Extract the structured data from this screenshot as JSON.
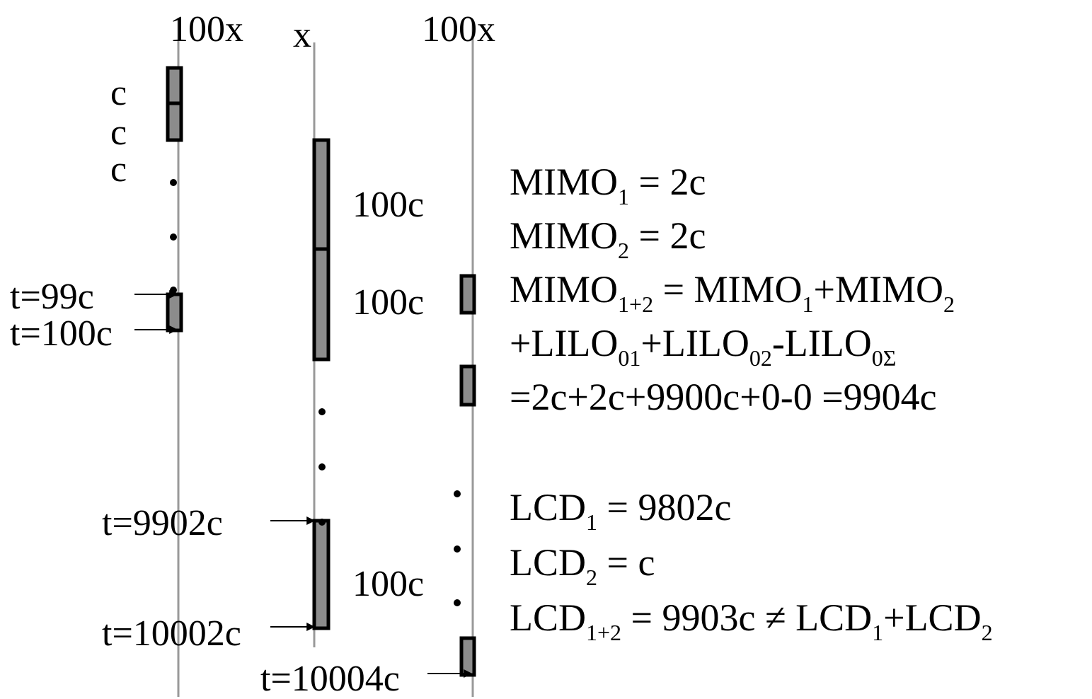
{
  "columns": {
    "left_header": "100x",
    "middle_header": "x",
    "right_header": "100x"
  },
  "left": {
    "c_labels": [
      "c",
      "c",
      "c"
    ],
    "t_start": "t=99c",
    "t_end": "t=100c"
  },
  "middle": {
    "duration_1": "100c",
    "duration_2": "100c",
    "duration_3": "100c",
    "t_start": "t=9902c",
    "t_end": "t=10002c"
  },
  "right": {
    "t_end": "t=10004c"
  },
  "equations": {
    "mimo1": {
      "base": "MIMO",
      "sub": "1",
      "rest": " = 2c"
    },
    "mimo2": {
      "base": "MIMO",
      "sub": "2",
      "rest": " = 2c"
    },
    "mimo12": {
      "base": "MIMO",
      "sub": "1+2",
      "mid": " = MIMO",
      "sub2": "1",
      "mid2": "+MIMO",
      "sub3": "2"
    },
    "lilo": {
      "a": "+LILO",
      "sa": "01",
      "b": "+LILO",
      "sb": "02",
      "c": "-LILO",
      "sc": "0Σ"
    },
    "total": "=2c+2c+9900c+0-0 =9904c",
    "lcd1": {
      "base": "LCD",
      "sub": "1",
      "rest": " = 9802c"
    },
    "lcd2": {
      "base": "LCD",
      "sub": "2",
      "rest": " = c"
    },
    "lcd12": {
      "base": "LCD",
      "sub": "1+2",
      "mid": " = 9903c ≠ LCD",
      "sub2": "1",
      "mid2": "+LCD",
      "sub3": "2"
    }
  }
}
